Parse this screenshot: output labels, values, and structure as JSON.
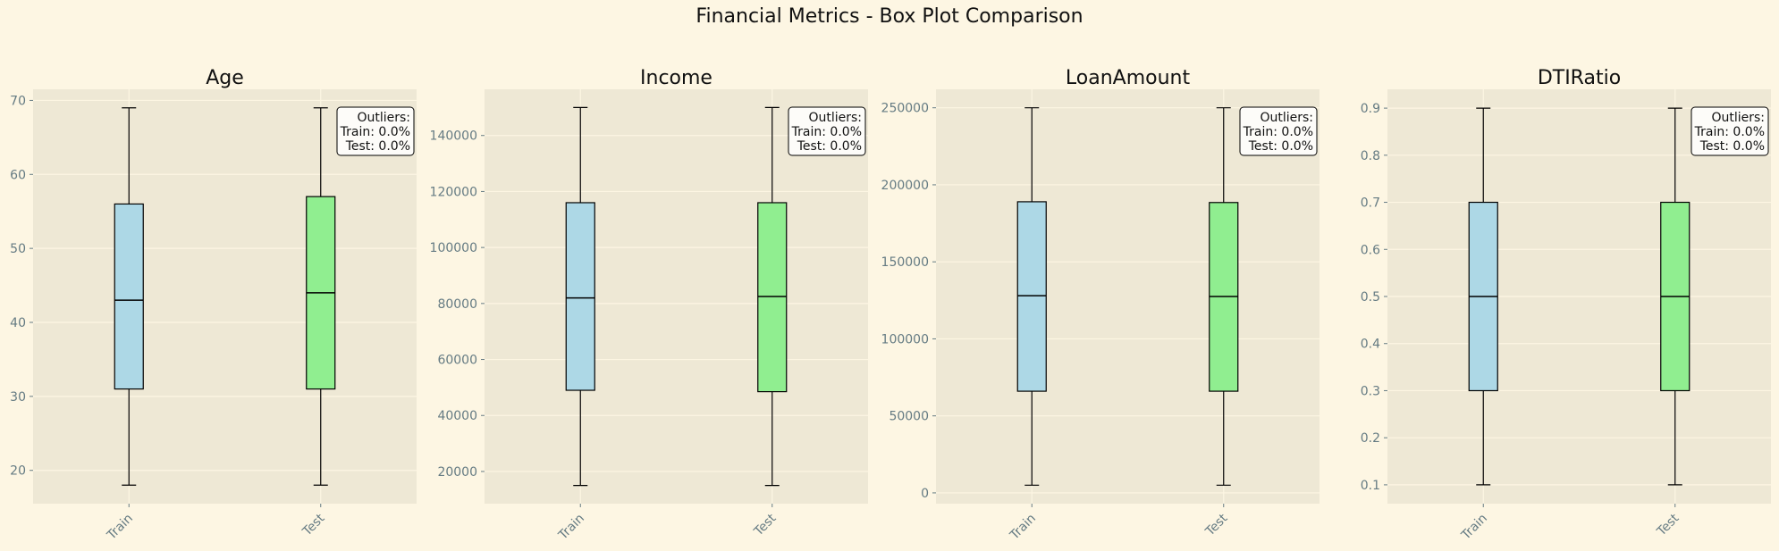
{
  "figure": {
    "title": "Financial Metrics - Box Plot Comparison"
  },
  "colors": {
    "background": "#fdf6e3",
    "axes_background": "#eee8d5",
    "grid": "#fdf6e3",
    "train_box": "#add8e6",
    "test_box": "#90ee90",
    "tick_text": "#657b83"
  },
  "chart_data": [
    {
      "type": "box",
      "title": "Age",
      "categories": [
        "Train",
        "Test"
      ],
      "ylim": [
        15.5,
        71.5
      ],
      "yticks": [
        20,
        30,
        40,
        50,
        60,
        70
      ],
      "grid": true,
      "boxes": [
        {
          "name": "Train",
          "whisker_low": 18,
          "q1": 31,
          "median": 43,
          "q3": 56,
          "whisker_high": 69
        },
        {
          "name": "Test",
          "whisker_low": 18,
          "q1": 31,
          "median": 44,
          "q3": 57,
          "whisker_high": 69
        }
      ],
      "annotation": [
        "Outliers:",
        "Train: 0.0%",
        "Test: 0.0%"
      ]
    },
    {
      "type": "box",
      "title": "Income",
      "categories": [
        "Train",
        "Test"
      ],
      "ylim": [
        8500,
        156500
      ],
      "yticks": [
        20000,
        40000,
        60000,
        80000,
        100000,
        120000,
        140000
      ],
      "grid": true,
      "boxes": [
        {
          "name": "Train",
          "whisker_low": 15000,
          "q1": 49000,
          "median": 82000,
          "q3": 116000,
          "whisker_high": 150000
        },
        {
          "name": "Test",
          "whisker_low": 15000,
          "q1": 48500,
          "median": 82500,
          "q3": 116000,
          "whisker_high": 150000
        }
      ],
      "annotation": [
        "Outliers:",
        "Train: 0.0%",
        "Test: 0.0%"
      ]
    },
    {
      "type": "box",
      "title": "LoanAmount",
      "categories": [
        "Train",
        "Test"
      ],
      "ylim": [
        -7000,
        262000
      ],
      "yticks": [
        0,
        50000,
        100000,
        150000,
        200000,
        250000
      ],
      "grid": true,
      "boxes": [
        {
          "name": "Train",
          "whisker_low": 5000,
          "q1": 66000,
          "median": 128000,
          "q3": 189000,
          "whisker_high": 250000
        },
        {
          "name": "Test",
          "whisker_low": 5000,
          "q1": 66000,
          "median": 127500,
          "q3": 188500,
          "whisker_high": 250000
        }
      ],
      "annotation": [
        "Outliers:",
        "Train: 0.0%",
        "Test: 0.0%"
      ]
    },
    {
      "type": "box",
      "title": "DTIRatio",
      "categories": [
        "Train",
        "Test"
      ],
      "ylim": [
        0.06,
        0.94
      ],
      "yticks": [
        0.1,
        0.2,
        0.3,
        0.4,
        0.5,
        0.6,
        0.7,
        0.8,
        0.9
      ],
      "grid": true,
      "boxes": [
        {
          "name": "Train",
          "whisker_low": 0.1,
          "q1": 0.3,
          "median": 0.5,
          "q3": 0.7,
          "whisker_high": 0.9
        },
        {
          "name": "Test",
          "whisker_low": 0.1,
          "q1": 0.3,
          "median": 0.5,
          "q3": 0.7,
          "whisker_high": 0.9
        }
      ],
      "annotation": [
        "Outliers:",
        "Train: 0.0%",
        "Test: 0.0%"
      ]
    }
  ]
}
